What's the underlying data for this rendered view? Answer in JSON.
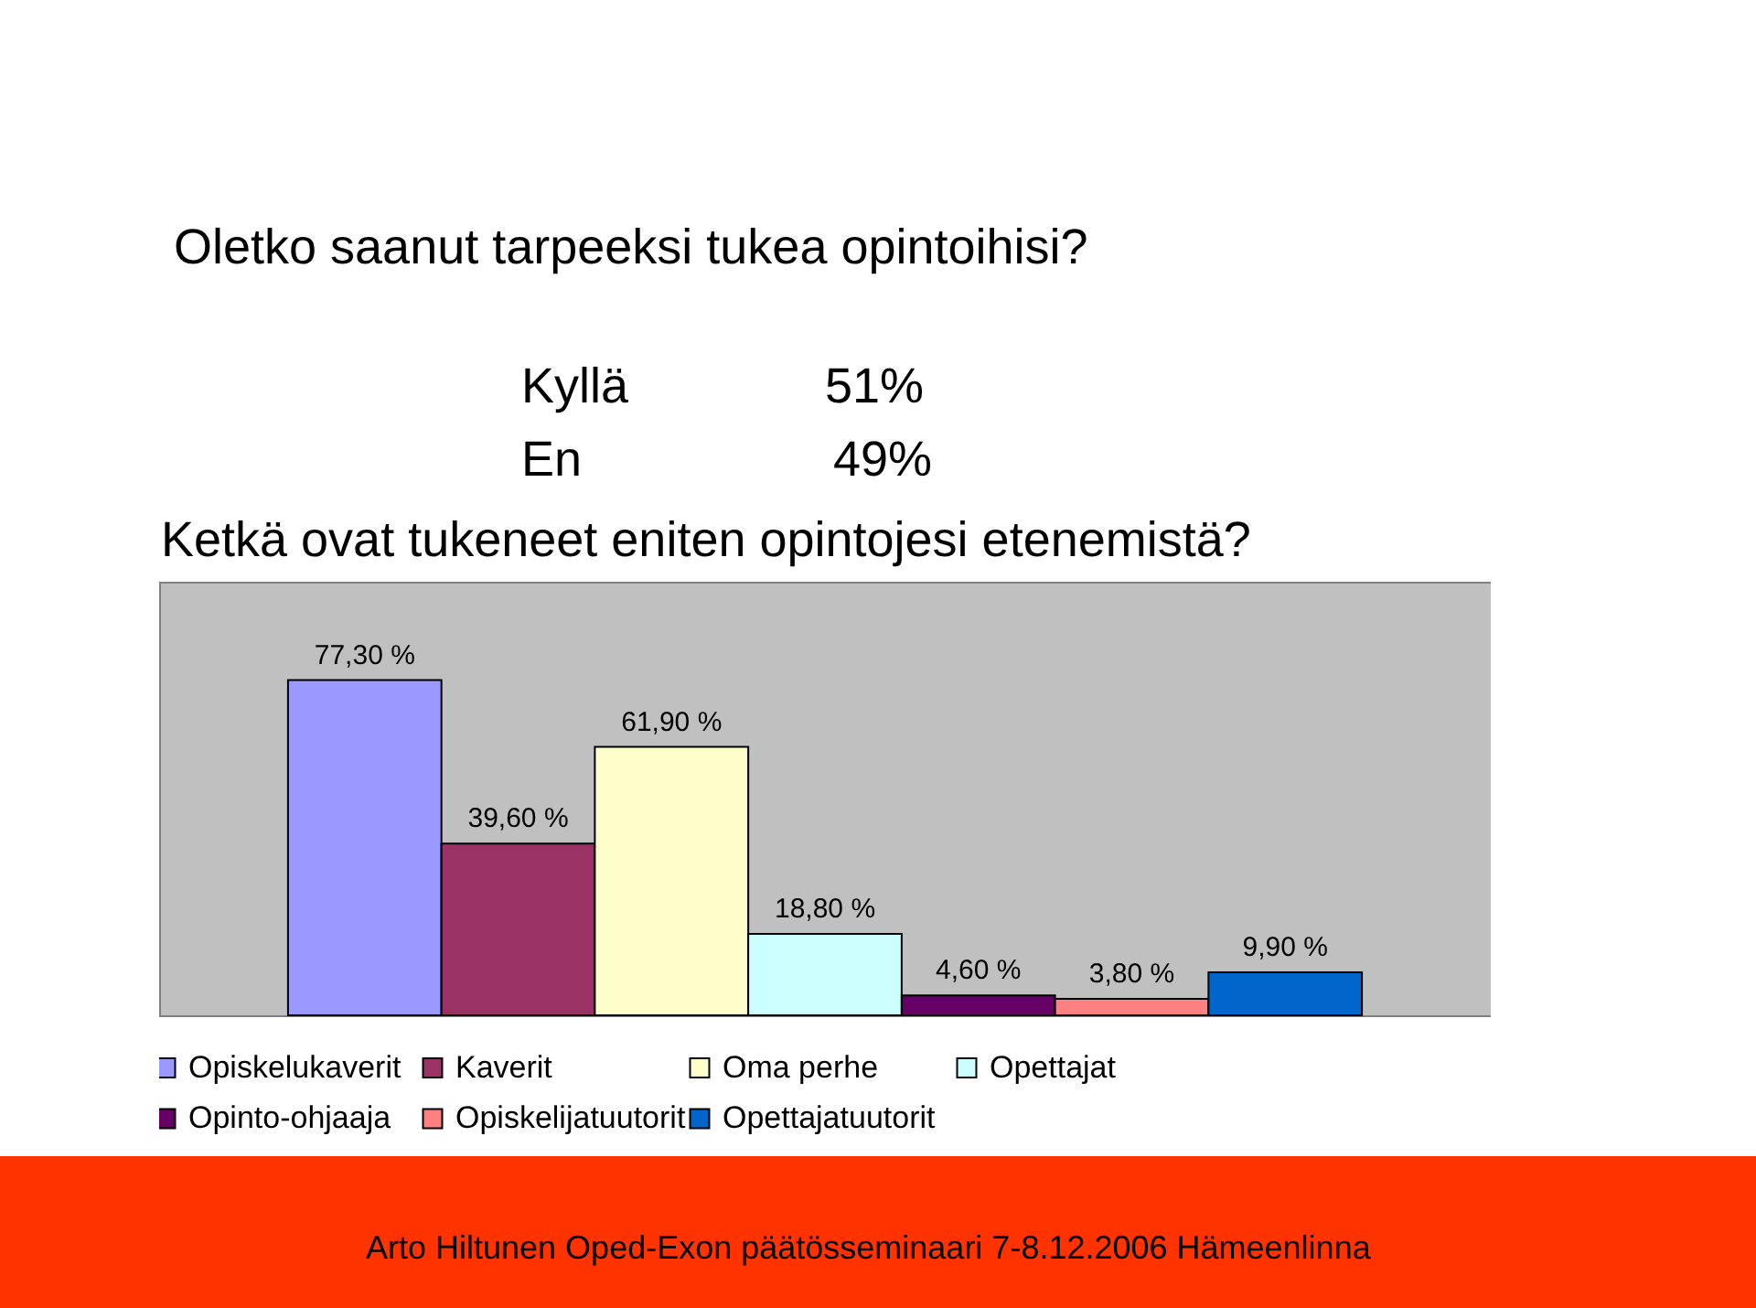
{
  "chart_data": {
    "type": "bar",
    "title": "Oletko saanut tarpeeksi tukea opintoihisi?",
    "subtitle": "Ketkä ovat tukeneet eniten opintojesi etenemistä?",
    "annotations": [
      "Kyllä 51%",
      "En 49%",
      "Arto Hiltunen Oped-Exon päätösseminaari 7-8.12.2006 Hämeenlinna"
    ],
    "categories": [
      null
    ],
    "ylim": [
      0,
      100
    ],
    "legend": "bottom",
    "series": [
      {
        "name": "Opiskelukaverit",
        "color": "#9999ff",
        "values": [
          77.3
        ],
        "value_labels": [
          "77,30 %"
        ]
      },
      {
        "name": "Kaverit",
        "color": "#993366",
        "values": [
          39.6
        ],
        "value_labels": [
          "39,60 %"
        ]
      },
      {
        "name": "Oma perhe",
        "color": "#ffffcc",
        "values": [
          61.9
        ],
        "value_labels": [
          "61,90 %"
        ]
      },
      {
        "name": "Opettajat",
        "color": "#ccffff",
        "values": [
          18.8
        ],
        "value_labels": [
          "18,80 %"
        ]
      },
      {
        "name": "Opinto-ohjaaja",
        "color": "#660066",
        "values": [
          4.6
        ],
        "value_labels": [
          "4,60 %"
        ]
      },
      {
        "name": "Opiskelijatuutorit",
        "color": "#ff8080",
        "values": [
          3.8
        ],
        "value_labels": [
          "3,80 %"
        ]
      },
      {
        "name": "Opettajatuutorit",
        "color": "#0066cc",
        "values": [
          9.9
        ],
        "value_labels": [
          "9,90 %"
        ]
      }
    ]
  }
}
